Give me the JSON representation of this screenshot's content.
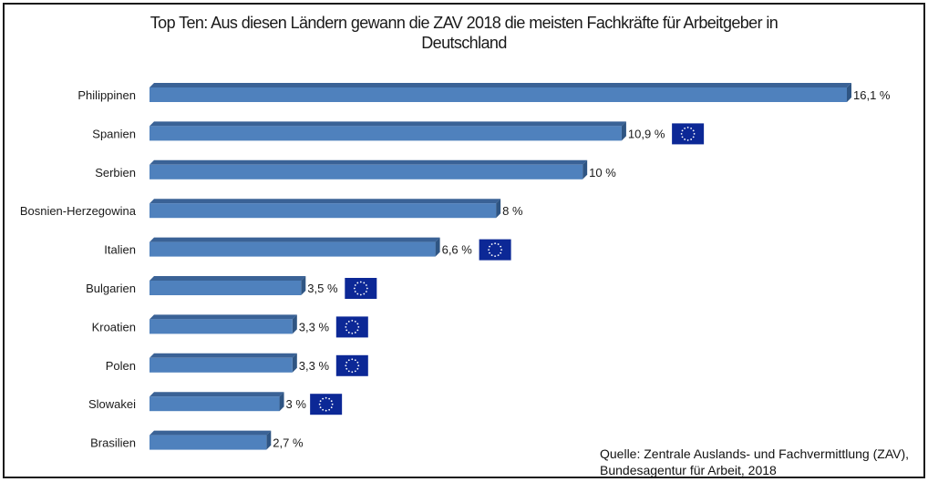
{
  "chart_data": {
    "type": "bar",
    "orientation": "horizontal",
    "title": "Top Ten: Aus diesen Ländern gewann die ZAV 2018 die meisten Fachkräfte für Arbeitgeber in Deutschland",
    "title_lines": [
      "Top Ten: Aus diesen Ländern gewann die ZAV 2018 die meisten Fachkräfte für Arbeitgeber in",
      "Deutschland"
    ],
    "xlabel": "",
    "ylabel": "",
    "unit": "%",
    "xlim": [
      0,
      16.1
    ],
    "grid": false,
    "categories": [
      "Philippinen",
      "Spanien",
      "Serbien",
      "Bosnien-Herzegowina",
      "Italien",
      "Bulgarien",
      "Kroatien",
      "Polen",
      "Slowakei",
      "Brasilien"
    ],
    "values": [
      16.1,
      10.9,
      10,
      8,
      6.6,
      3.5,
      3.3,
      3.3,
      3,
      2.7
    ],
    "data_labels": [
      "16,1 %",
      "10,9 %",
      "10 %",
      "8 %",
      "6,6 %",
      "3,5 %",
      "3,3 %",
      "3,3 %",
      "3 %",
      "2,7 %"
    ],
    "eu_member": [
      false,
      true,
      false,
      false,
      true,
      true,
      true,
      true,
      true,
      false
    ],
    "bar_color": "#4f81bd",
    "bar_top_color": "#3a6296",
    "bar_side_color": "#2f5583",
    "eu_flag_color": "#0c2896",
    "eu_star_color": "#ffffff",
    "source_lines": [
      "Quelle: Zentrale Auslands- und Fachvermittlung (ZAV),",
      "Bundesagentur für Arbeit, 2018"
    ]
  }
}
